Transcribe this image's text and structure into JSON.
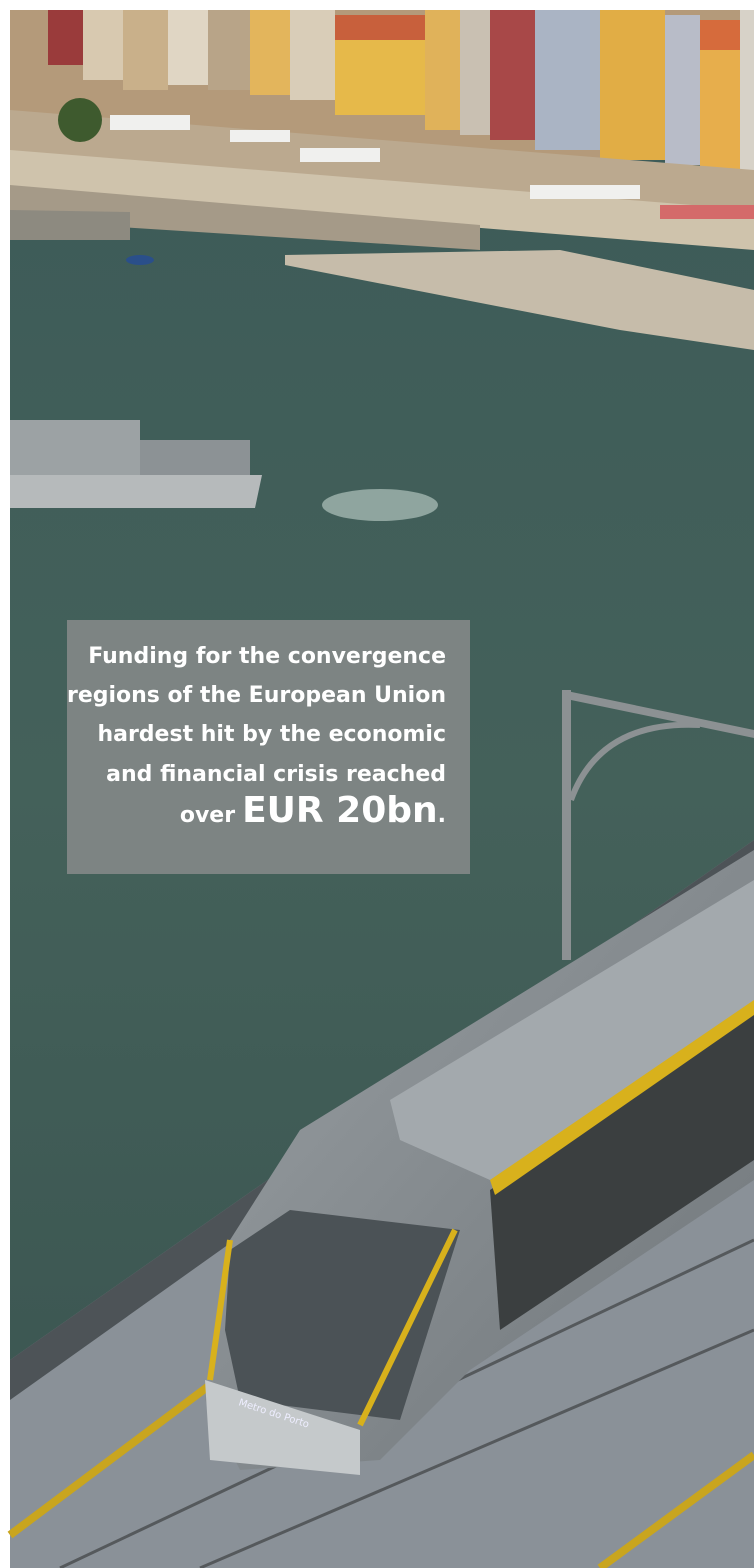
{
  "callout": {
    "lines": [
      "Funding for the convergence",
      "regions of the European Union",
      "hardest hit by the economic",
      "and financial crisis reached"
    ],
    "last_line": {
      "prefix": "over",
      "emphasis": "EUR 20bn",
      "suffix": "."
    }
  },
  "photo_text": "Metro do Porto"
}
